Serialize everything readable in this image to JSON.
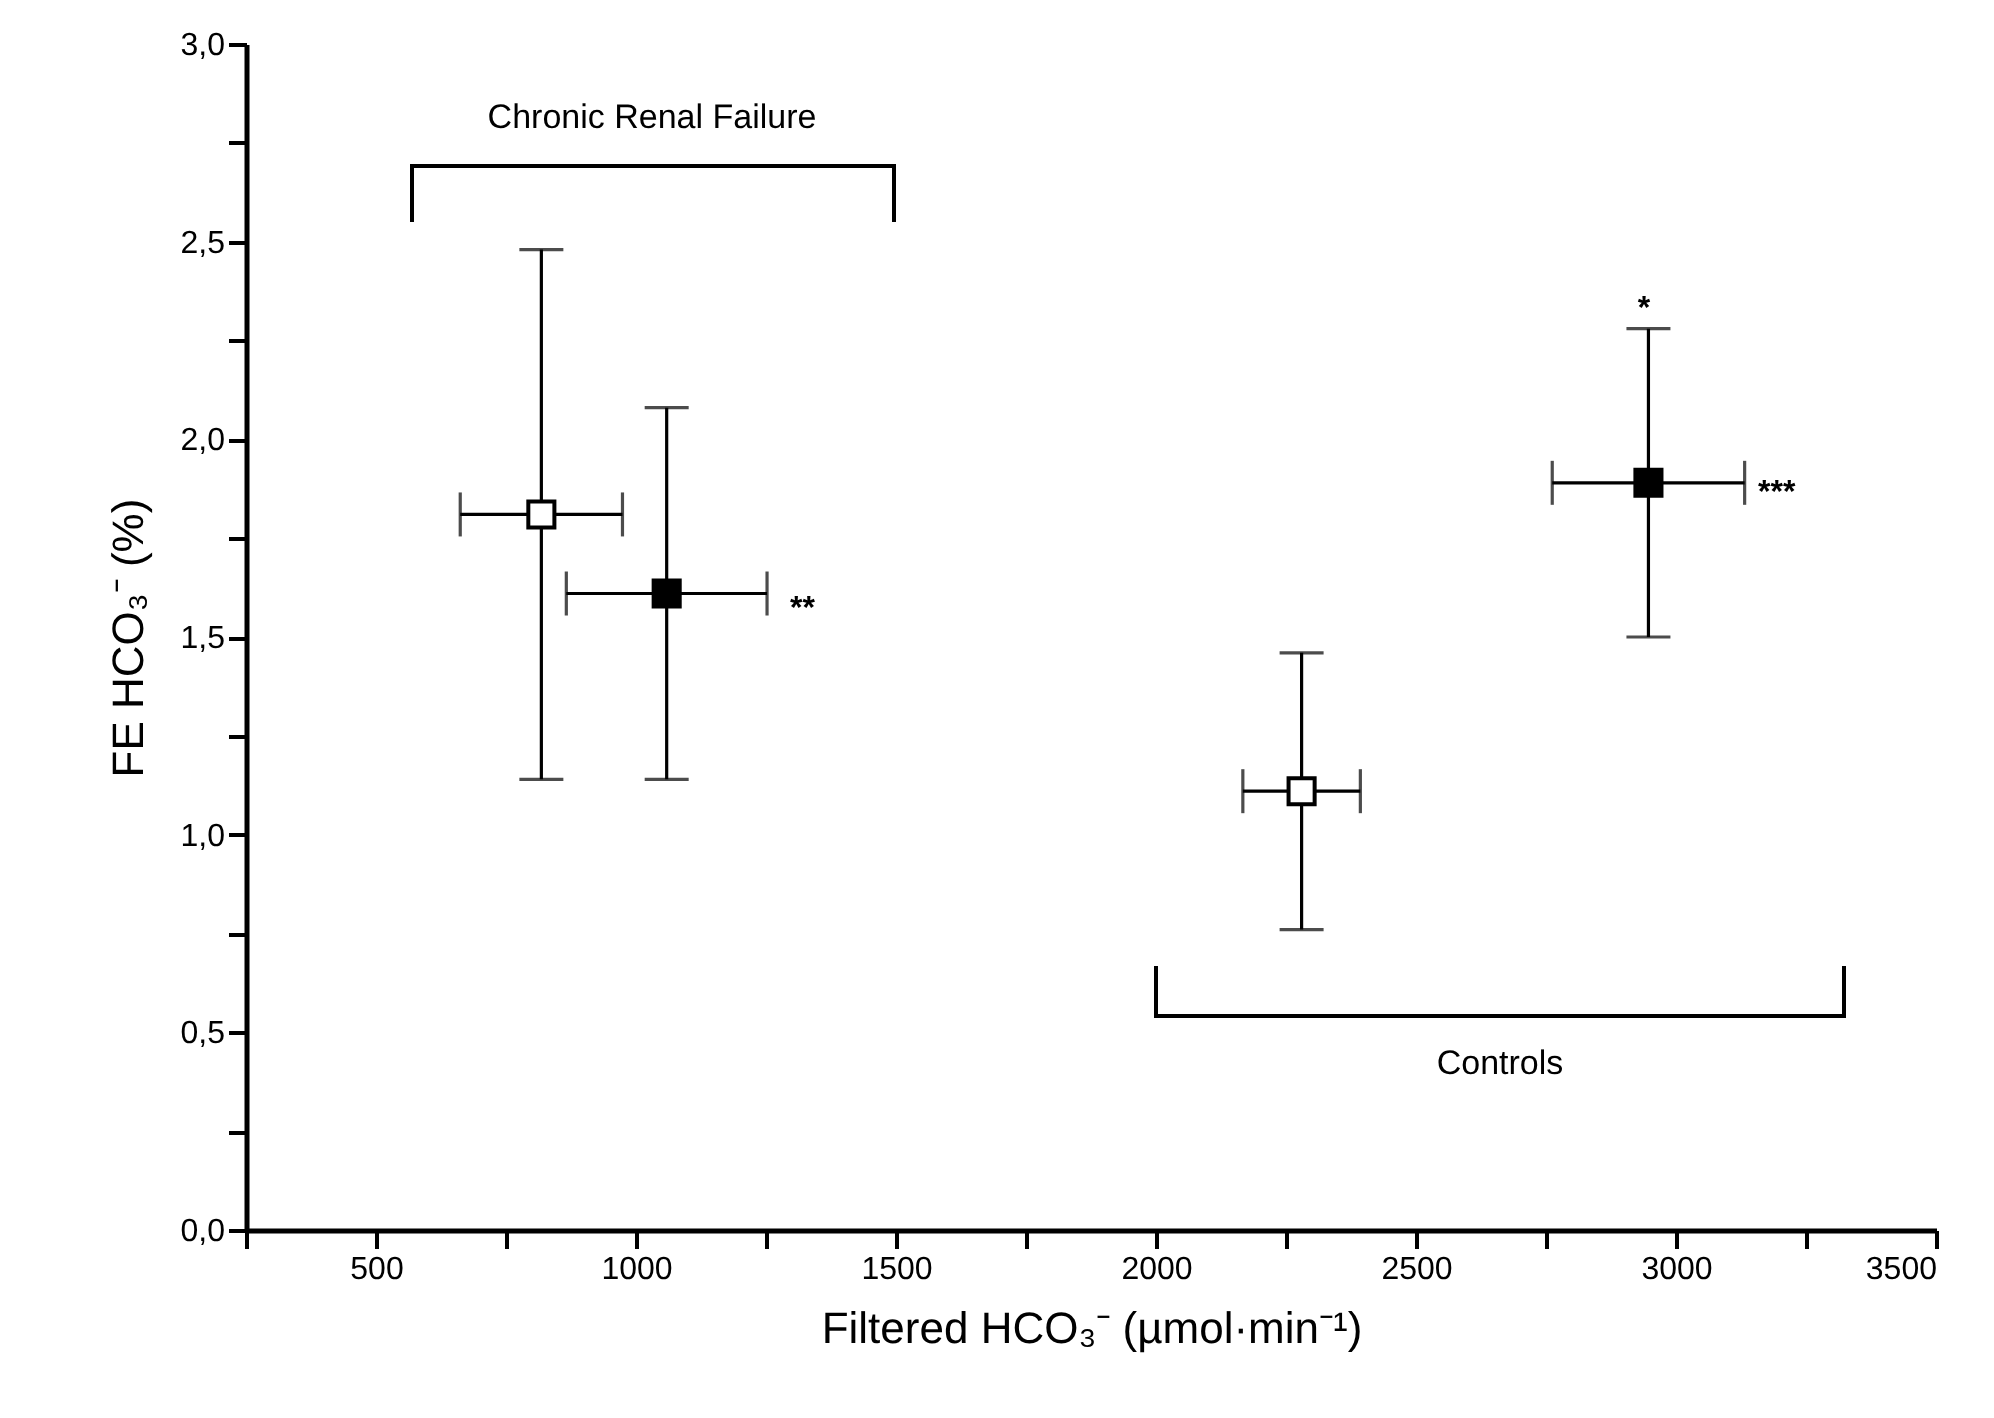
{
  "chart_data": {
    "type": "scatter",
    "xlabel": "Filtered HCO₃⁻ (µmol·min⁻¹)",
    "ylabel": "FE HCO₃⁻ (%)",
    "marker": "square",
    "grid": false,
    "xlim": [
      250,
      3500
    ],
    "ylim": [
      0,
      3
    ],
    "xticks": [
      {
        "value": 250,
        "label": null
      },
      500,
      {
        "value": 750,
        "label": null
      },
      1000,
      {
        "value": 1250,
        "label": null
      },
      1500,
      {
        "value": 1750,
        "label": null
      },
      2000,
      {
        "value": 2250,
        "label": null
      },
      2500,
      {
        "value": 2750,
        "label": null
      },
      3000,
      {
        "value": 3250,
        "label": null
      },
      3500
    ],
    "yticks": [
      {
        "value": 0,
        "label": "0,0"
      },
      {
        "value": 0.25,
        "label": null
      },
      {
        "value": 0.5,
        "label": "0,5"
      },
      {
        "value": 0.75,
        "label": null
      },
      {
        "value": 1,
        "label": "1,0"
      },
      {
        "value": 1.25,
        "label": null
      },
      {
        "value": 1.5,
        "label": "1,5"
      },
      {
        "value": 1.75,
        "label": null
      },
      {
        "value": 2,
        "label": "2,0"
      },
      {
        "value": 2.25,
        "label": null
      },
      {
        "value": 2.5,
        "label": "2,5"
      },
      {
        "value": 2.75,
        "label": null
      },
      {
        "value": 3,
        "label": "3,0"
      }
    ],
    "series": [
      {
        "color": "#ffffff",
        "x": [
          818,
          2280
        ],
        "values": [
          1.81,
          1.11
        ],
        "errors": [
          0.67,
          0.35
        ],
        "xerrors": [
          156,
          113
        ]
      },
      {
        "color": "#000000",
        "x": [
          1059,
          2947
        ],
        "values": [
          1.61,
          1.89
        ],
        "errors": [
          0.47,
          0.39
        ],
        "xerrors": [
          193,
          185
        ]
      }
    ],
    "annotations": [
      "Chronic Renal Failure",
      "Controls",
      "**",
      "***",
      "*"
    ]
  }
}
